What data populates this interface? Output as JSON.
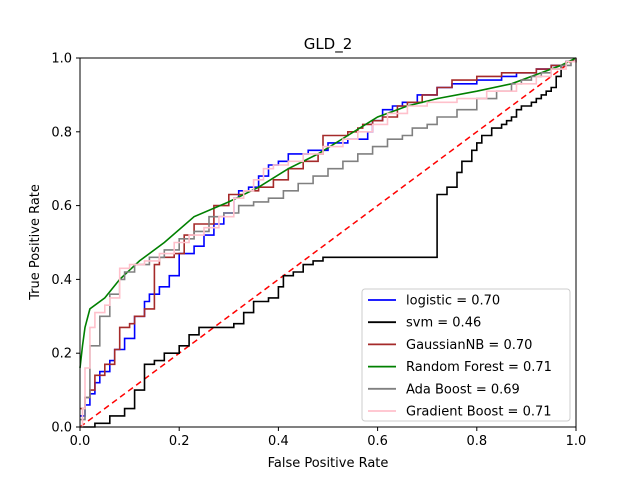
{
  "chart_data": {
    "type": "line",
    "title": "GLD_2",
    "xlabel": "False Positive Rate",
    "ylabel": "True Positive Rate",
    "xlim": [
      0,
      1
    ],
    "ylim": [
      0,
      1
    ],
    "xticks": [
      "0.0",
      "0.2",
      "0.4",
      "0.6",
      "0.8",
      "1.0"
    ],
    "yticks": [
      "0.0",
      "0.2",
      "0.4",
      "0.6",
      "0.8",
      "1.0"
    ],
    "grid": false,
    "legend_position": "lower-right",
    "diagonal": {
      "color": "#ff0000",
      "style": "dashed",
      "x": [
        0,
        1
      ],
      "y": [
        0,
        1
      ]
    },
    "series": [
      {
        "name": "logistic = 0.70",
        "color": "#0000ff",
        "step": true,
        "x": [
          0,
          0.01,
          0.02,
          0.03,
          0.04,
          0.06,
          0.07,
          0.09,
          0.11,
          0.13,
          0.14,
          0.16,
          0.18,
          0.2,
          0.23,
          0.25,
          0.27,
          0.29,
          0.31,
          0.32,
          0.34,
          0.36,
          0.38,
          0.4,
          0.42,
          0.46,
          0.5,
          0.54,
          0.58,
          0.59,
          0.61,
          0.63,
          0.65,
          0.68,
          0.72,
          0.75,
          0.8,
          0.85,
          0.88,
          0.92,
          0.95,
          0.98,
          1.0
        ],
        "y": [
          0.03,
          0.06,
          0.09,
          0.12,
          0.15,
          0.18,
          0.21,
          0.24,
          0.3,
          0.34,
          0.36,
          0.38,
          0.41,
          0.47,
          0.49,
          0.52,
          0.55,
          0.58,
          0.62,
          0.64,
          0.65,
          0.68,
          0.71,
          0.72,
          0.74,
          0.75,
          0.77,
          0.78,
          0.8,
          0.83,
          0.86,
          0.87,
          0.88,
          0.9,
          0.92,
          0.93,
          0.94,
          0.95,
          0.96,
          0.97,
          0.98,
          0.99,
          1.0
        ]
      },
      {
        "name": "svm = 0.46",
        "color": "#000000",
        "step": true,
        "x": [
          0,
          0.03,
          0.06,
          0.09,
          0.11,
          0.13,
          0.15,
          0.17,
          0.2,
          0.22,
          0.24,
          0.31,
          0.33,
          0.35,
          0.38,
          0.4,
          0.41,
          0.43,
          0.45,
          0.47,
          0.49,
          0.72,
          0.74,
          0.76,
          0.77,
          0.79,
          0.8,
          0.81,
          0.83,
          0.85,
          0.86,
          0.87,
          0.88,
          0.89,
          0.91,
          0.92,
          0.93,
          0.94,
          0.95,
          0.96,
          0.97,
          0.98,
          1.0
        ],
        "y": [
          0.0,
          0.01,
          0.03,
          0.05,
          0.1,
          0.17,
          0.18,
          0.2,
          0.22,
          0.25,
          0.27,
          0.28,
          0.31,
          0.34,
          0.35,
          0.38,
          0.41,
          0.42,
          0.44,
          0.45,
          0.46,
          0.63,
          0.65,
          0.69,
          0.72,
          0.75,
          0.77,
          0.79,
          0.81,
          0.82,
          0.83,
          0.84,
          0.86,
          0.87,
          0.88,
          0.89,
          0.9,
          0.91,
          0.92,
          0.95,
          0.98,
          0.99,
          1.0
        ]
      },
      {
        "name": "GaussianNB = 0.70",
        "color": "#a52a2a",
        "step": true,
        "x": [
          0,
          0.01,
          0.02,
          0.03,
          0.05,
          0.07,
          0.08,
          0.1,
          0.11,
          0.13,
          0.15,
          0.16,
          0.19,
          0.21,
          0.23,
          0.27,
          0.3,
          0.33,
          0.36,
          0.39,
          0.42,
          0.45,
          0.48,
          0.49,
          0.51,
          0.54,
          0.56,
          0.57,
          0.59,
          0.61,
          0.64,
          0.66,
          0.69,
          0.72,
          0.75,
          0.8,
          0.85,
          0.89,
          0.92,
          0.95,
          0.98,
          1.0
        ],
        "y": [
          0.05,
          0.08,
          0.1,
          0.14,
          0.17,
          0.21,
          0.27,
          0.28,
          0.3,
          0.32,
          0.44,
          0.46,
          0.47,
          0.52,
          0.55,
          0.6,
          0.63,
          0.64,
          0.65,
          0.67,
          0.7,
          0.72,
          0.74,
          0.79,
          0.79,
          0.8,
          0.81,
          0.82,
          0.83,
          0.84,
          0.87,
          0.88,
          0.9,
          0.92,
          0.94,
          0.95,
          0.96,
          0.96,
          0.97,
          0.98,
          0.99,
          1.0
        ]
      },
      {
        "name": "Random Forest = 0.71",
        "color": "#008000",
        "step": false,
        "x": [
          0,
          0.005,
          0.01,
          0.02,
          0.05,
          0.08,
          0.12,
          0.17,
          0.23,
          0.3,
          0.36,
          0.42,
          0.48,
          0.54,
          0.6,
          0.66,
          0.72,
          0.8,
          0.87,
          0.93,
          0.97,
          1.0
        ],
        "y": [
          0.16,
          0.22,
          0.27,
          0.32,
          0.35,
          0.4,
          0.45,
          0.5,
          0.57,
          0.61,
          0.65,
          0.7,
          0.74,
          0.79,
          0.84,
          0.87,
          0.89,
          0.91,
          0.93,
          0.96,
          0.98,
          1.0
        ]
      },
      {
        "name": "Ada Boost = 0.69",
        "color": "#808080",
        "step": true,
        "x": [
          0,
          0.01,
          0.02,
          0.04,
          0.06,
          0.08,
          0.09,
          0.11,
          0.14,
          0.17,
          0.2,
          0.23,
          0.26,
          0.29,
          0.32,
          0.35,
          0.38,
          0.41,
          0.44,
          0.47,
          0.5,
          0.53,
          0.56,
          0.59,
          0.62,
          0.65,
          0.67,
          0.7,
          0.72,
          0.76,
          0.8,
          0.84,
          0.87,
          0.89,
          0.91,
          0.93,
          0.95,
          0.97,
          0.99,
          1.0
        ],
        "y": [
          0.02,
          0.08,
          0.22,
          0.3,
          0.36,
          0.4,
          0.42,
          0.44,
          0.46,
          0.48,
          0.51,
          0.53,
          0.57,
          0.58,
          0.6,
          0.61,
          0.62,
          0.64,
          0.66,
          0.68,
          0.7,
          0.72,
          0.74,
          0.76,
          0.78,
          0.79,
          0.81,
          0.82,
          0.84,
          0.86,
          0.89,
          0.91,
          0.93,
          0.94,
          0.95,
          0.96,
          0.97,
          0.98,
          0.99,
          1.0
        ]
      },
      {
        "name": "Gradient Boost = 0.71",
        "color": "#ffc0cb",
        "step": true,
        "x": [
          0,
          0.005,
          0.01,
          0.02,
          0.03,
          0.05,
          0.06,
          0.08,
          0.1,
          0.13,
          0.16,
          0.19,
          0.22,
          0.25,
          0.28,
          0.31,
          0.33,
          0.35,
          0.37,
          0.39,
          0.42,
          0.45,
          0.49,
          0.53,
          0.56,
          0.59,
          0.62,
          0.66,
          0.7,
          0.76,
          0.82,
          0.88,
          0.92,
          0.95,
          0.98,
          1.0
        ],
        "y": [
          0.0,
          0.05,
          0.16,
          0.27,
          0.31,
          0.33,
          0.35,
          0.43,
          0.44,
          0.45,
          0.47,
          0.5,
          0.52,
          0.54,
          0.57,
          0.62,
          0.64,
          0.67,
          0.7,
          0.71,
          0.72,
          0.74,
          0.76,
          0.78,
          0.8,
          0.82,
          0.85,
          0.87,
          0.88,
          0.89,
          0.91,
          0.93,
          0.95,
          0.97,
          0.99,
          1.0
        ]
      }
    ]
  }
}
